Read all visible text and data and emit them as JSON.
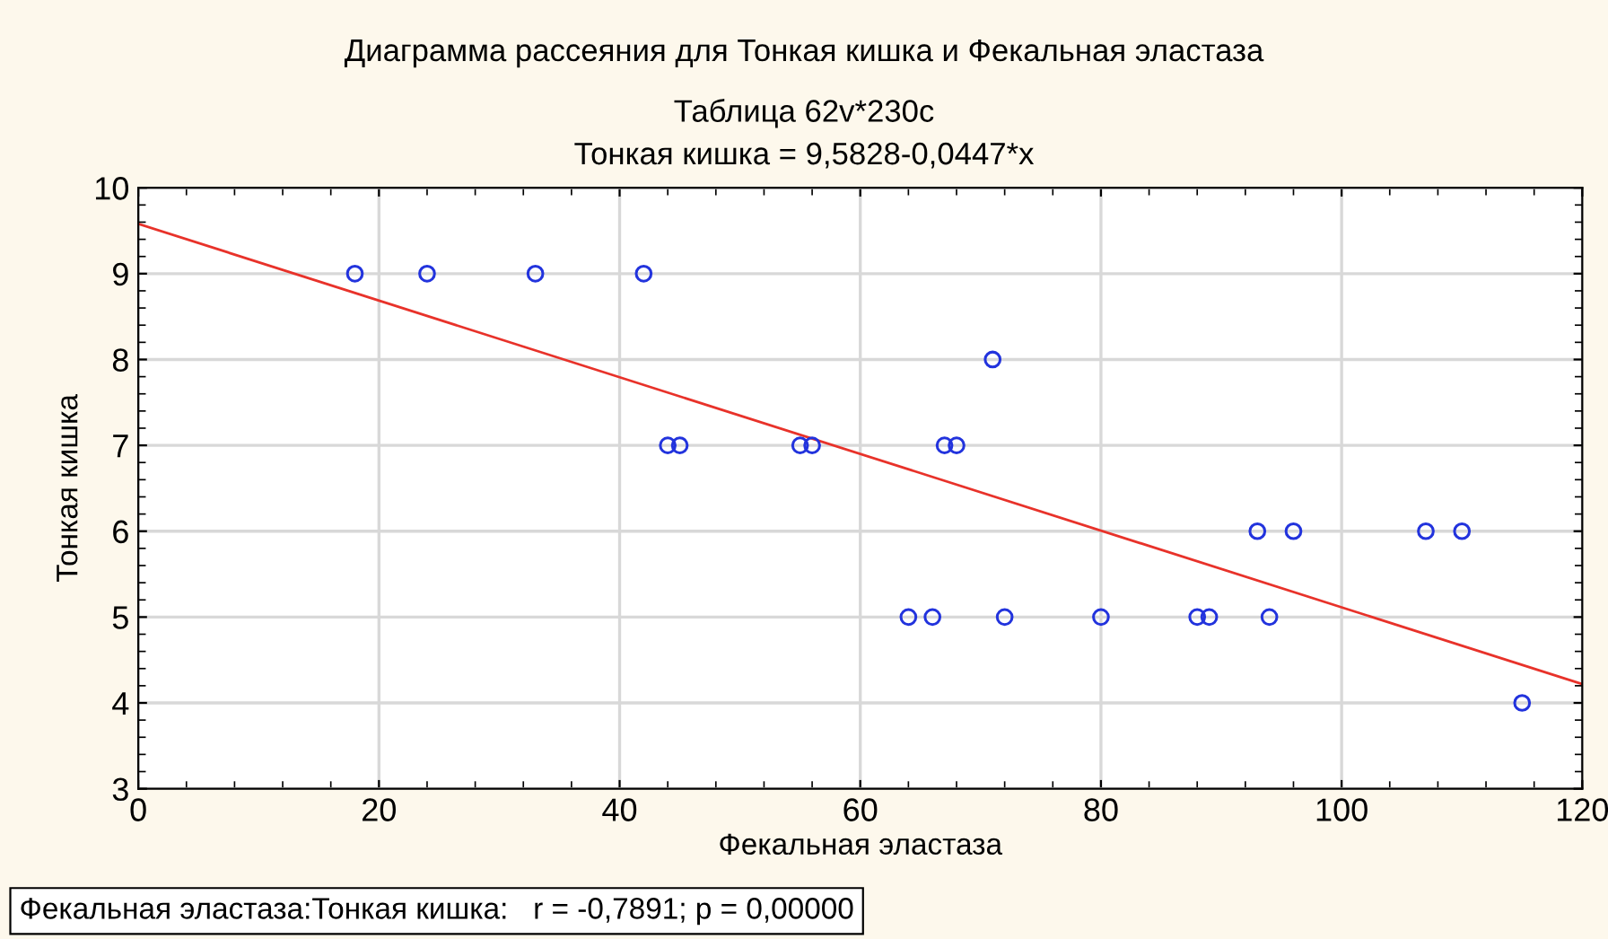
{
  "chart_data": {
    "type": "scatter",
    "title": "Диаграмма рассеяния для Тонкая кишка и Фекальная эластаза",
    "subtitle": "Таблица 62v*230c\nТонкая кишка = 9,5828-0,0447*x",
    "xlabel": "Фекальная эластаза",
    "ylabel": "Тонкая кишка",
    "annotations": [
      "Фекальная эластаза:Тонкая кишка:   r = -0,7891; p = 0,00000"
    ],
    "series": [
      {
        "color": "#2233dd",
        "marker": "circle",
        "x": [
          18,
          24,
          33,
          42,
          44,
          45,
          55,
          56,
          64,
          66,
          67,
          68,
          71,
          72,
          80,
          88,
          89,
          93,
          94,
          96,
          107,
          110,
          115
        ],
        "values": [
          9,
          9,
          9,
          9,
          7,
          7,
          7,
          7,
          5,
          5,
          7,
          7,
          8,
          5,
          5,
          5,
          5,
          6,
          5,
          6,
          6,
          6,
          4
        ]
      },
      {
        "type": "line",
        "color": "#e8322a",
        "x": [
          0,
          120
        ],
        "values": [
          9.58,
          4.22
        ]
      }
    ],
    "xlim": [
      0,
      120
    ],
    "ylim": [
      3,
      10
    ],
    "xticks": [
      0,
      20,
      40,
      60,
      80,
      100,
      120
    ],
    "yticks": [
      3,
      4,
      5,
      6,
      7,
      8,
      9,
      10
    ],
    "grid": true,
    "legend": false
  }
}
